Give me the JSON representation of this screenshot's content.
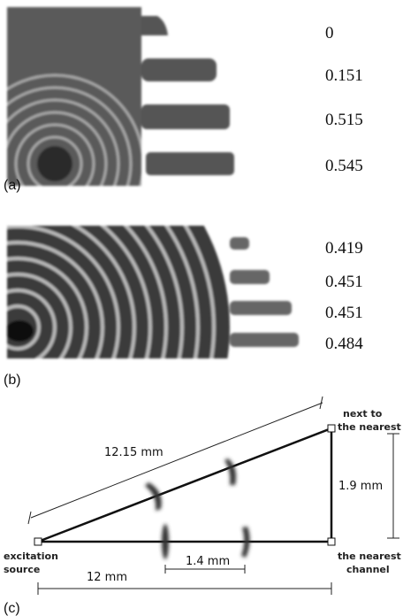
{
  "panels": [
    {
      "label": "(a)",
      "values": [
        "0",
        "0.151",
        "0.515",
        "0.545"
      ]
    },
    {
      "label": "(b)",
      "values": [
        "0.419",
        "0.451",
        "0.451",
        "0.484"
      ]
    },
    {
      "label": "(c)",
      "hypotenuse": "12.15 mm",
      "height": "1.9 mm",
      "base": "12 mm",
      "spacing": "1.4 mm",
      "top_corner": [
        "next to",
        "the nearest"
      ],
      "right_corner": [
        "the nearest",
        "channel"
      ],
      "left_corner": [
        "excitation",
        "source"
      ]
    }
  ]
}
